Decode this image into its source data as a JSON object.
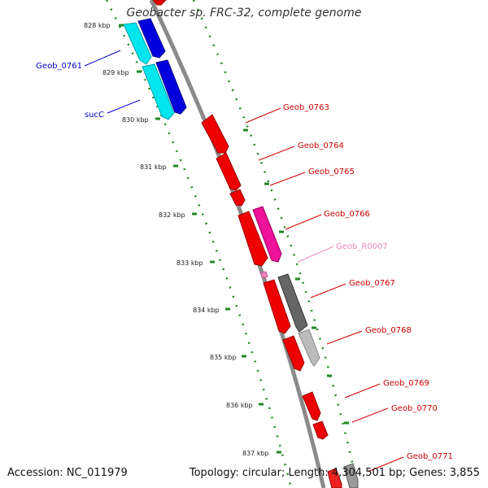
{
  "title": "Geobacter sp. FRC-32, complete genome",
  "footer": {
    "accession_label": "Accession: ",
    "accession": "NC_011979",
    "topology_label": "Topology: ",
    "topology": "circular",
    "length_label": "; Length: ",
    "length": "4,304,501 bp",
    "genes_label": "; Genes: ",
    "genes": "3,855"
  },
  "colors": {
    "backbone": "#888888",
    "ruler": "#228822",
    "cyan_gene": "#00e5ee",
    "blue_gene": "#0000dd",
    "red_gene": "#ee0000",
    "magenta_gene": "#ee1199",
    "dark_gray_gene": "#666666",
    "light_gray_gene": "#bbbbbb",
    "left_label": "#0000cc",
    "right_label": "#cc0000",
    "rna_label": "#ee88bb"
  },
  "ruler_labels": [
    "828 kbp",
    "829 kbp",
    "830 kbp",
    "831 kbp",
    "832 kbp",
    "833 kbp",
    "834 kbp",
    "835 kbp",
    "836 kbp",
    "837 kbp"
  ],
  "left_genes": [
    {
      "name": "Geob_0761",
      "icon": "cyan-gene-arrow"
    },
    {
      "name": "sucC",
      "icon": "cyan-gene-arrow"
    }
  ],
  "right_genes": [
    {
      "name": "Geob_0763",
      "icon": "red-gene-arrow"
    },
    {
      "name": "Geob_0764",
      "icon": "red-gene-arrow"
    },
    {
      "name": "Geob_0765",
      "icon": "red-gene-arrow"
    },
    {
      "name": "Geob_0766",
      "icon": "red-gene-arrow"
    },
    {
      "name": "Geob_R0007",
      "icon": "rna-gene-arrow"
    },
    {
      "name": "Geob_0767",
      "icon": "red-gene-arrow"
    },
    {
      "name": "Geob_0768",
      "icon": "red-gene-arrow"
    },
    {
      "name": "Geob_0769",
      "icon": "red-gene-arrow"
    },
    {
      "name": "Geob_0770",
      "icon": "red-gene-arrow"
    },
    {
      "name": "Geob_0771",
      "icon": "red-gene-arrow"
    }
  ]
}
